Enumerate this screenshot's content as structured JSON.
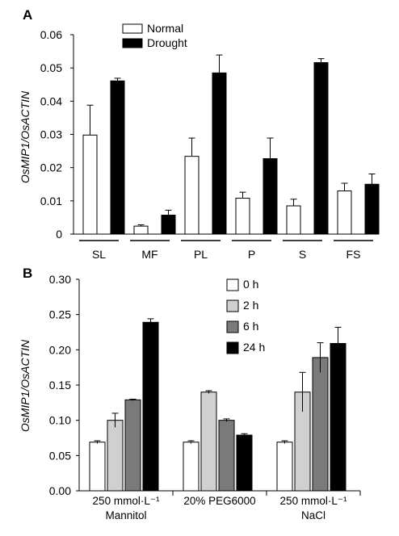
{
  "chart_data": [
    {
      "panel": "A",
      "type": "bar",
      "ylabel": "OsMIP1/OsACTIN",
      "ylim": [
        0,
        0.06
      ],
      "yticks": [
        "0",
        "0.01",
        "0.02",
        "0.03",
        "0.04",
        "0.05",
        "0.06"
      ],
      "categories": [
        "SL",
        "MF",
        "PL",
        "P",
        "S",
        "FS"
      ],
      "series": [
        {
          "name": "Normal",
          "color": "#ffffff",
          "values": [
            0.0298,
            0.0024,
            0.0234,
            0.0108,
            0.0085,
            0.013
          ],
          "errors": [
            0.009,
            0.0004,
            0.0055,
            0.0018,
            0.002,
            0.0023
          ]
        },
        {
          "name": "Drought",
          "color": "#000000",
          "values": [
            0.0461,
            0.0057,
            0.0485,
            0.0227,
            0.0516,
            0.015
          ],
          "errors": [
            0.0008,
            0.0015,
            0.0054,
            0.0062,
            0.0012,
            0.0031
          ]
        }
      ],
      "legend": "top-left",
      "grid": false
    },
    {
      "panel": "B",
      "type": "bar",
      "ylabel": "OsMIP1/OsACTIN",
      "ylim": [
        0,
        0.3
      ],
      "yticks": [
        "0.00",
        "0.05",
        "0.10",
        "0.15",
        "0.20",
        "0.25",
        "0.30"
      ],
      "categories": [
        {
          "line1": "250  mmol·L⁻¹",
          "line2": "Mannitol"
        },
        {
          "line1": "20% PEG6000",
          "line2": ""
        },
        {
          "line1": "250  mmol·L⁻¹",
          "line2": "NaCl"
        }
      ],
      "series": [
        {
          "name": "0 h",
          "color": "#ffffff",
          "values": [
            0.069,
            0.069,
            0.069
          ],
          "errors": [
            0.002,
            0.002,
            0.002
          ]
        },
        {
          "name": "2 h",
          "color": "#d0d0d0",
          "values": [
            0.1,
            0.14,
            0.14
          ],
          "errors": [
            0.01,
            0.002,
            0.028
          ]
        },
        {
          "name": "6 h",
          "color": "#7a7a7a",
          "values": [
            0.129,
            0.1,
            0.189
          ],
          "errors": [
            0.001,
            0.002,
            0.021
          ]
        },
        {
          "name": "24 h",
          "color": "#000000",
          "values": [
            0.239,
            0.079,
            0.209
          ],
          "errors": [
            0.005,
            0.002,
            0.023
          ]
        }
      ],
      "legend": "top-center",
      "grid": false
    }
  ]
}
